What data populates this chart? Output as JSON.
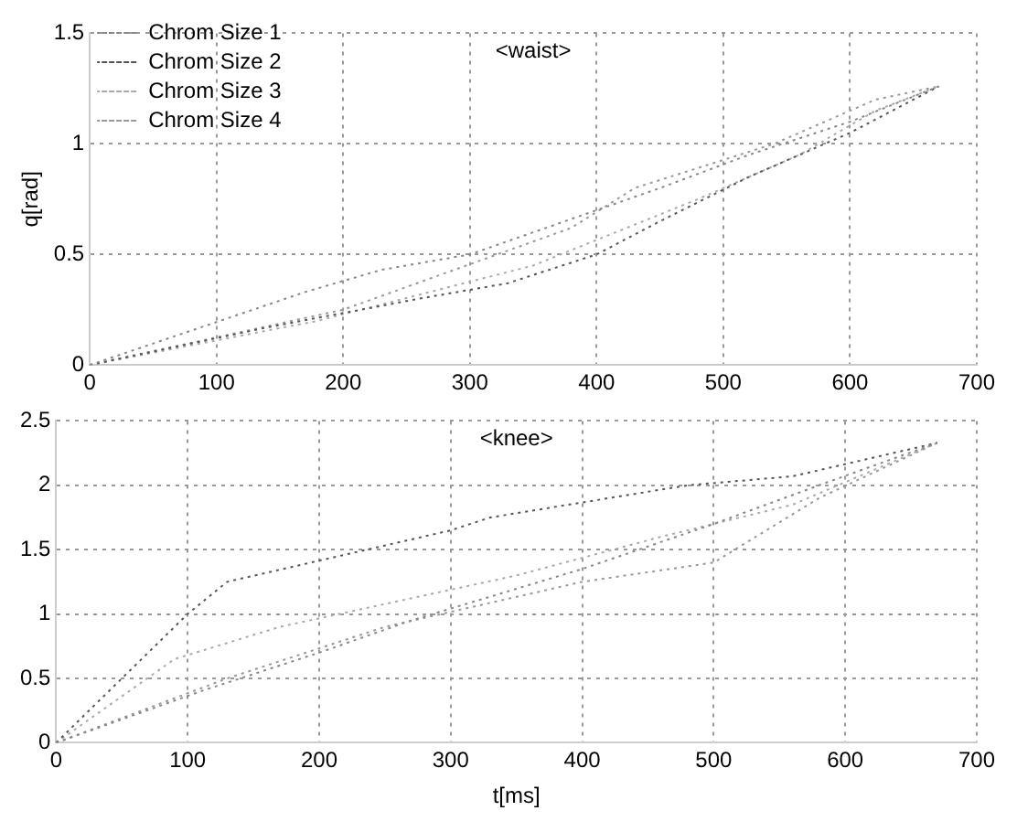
{
  "chart_data": [
    {
      "type": "line",
      "title": "<waist>",
      "ylabel": "q[rad]",
      "xlim": [
        0,
        700
      ],
      "xticks": [
        0,
        100,
        200,
        300,
        400,
        500,
        600,
        700
      ],
      "ylim": [
        0,
        1.5
      ],
      "yticks": [
        0,
        0.5,
        1,
        1.5
      ],
      "grid": true,
      "legend": "top left",
      "marker": "none",
      "line_style": "dotted",
      "series": [
        {
          "name": "Chrom Size 1",
          "color": "#888888",
          "x": [
            0,
            170,
            230,
            300,
            400,
            450,
            520,
            600,
            670
          ],
          "values": [
            0,
            0.33,
            0.43,
            0.5,
            0.7,
            0.8,
            0.95,
            1.1,
            1.26
          ]
        },
        {
          "name": "Chrom Size 2",
          "color": "#555555",
          "x": [
            0,
            140,
            260,
            330,
            400,
            450,
            520,
            600,
            670
          ],
          "values": [
            0,
            0.17,
            0.3,
            0.37,
            0.5,
            0.65,
            0.85,
            1.05,
            1.26
          ]
        },
        {
          "name": "Chrom Size 3",
          "color": "#aaaaaa",
          "x": [
            0,
            180,
            350,
            480,
            560,
            620,
            670
          ],
          "values": [
            0,
            0.2,
            0.45,
            0.75,
            0.95,
            1.15,
            1.26
          ]
        },
        {
          "name": "Chrom Size 4",
          "color": "#999999",
          "x": [
            0,
            200,
            380,
            430,
            540,
            620,
            670
          ],
          "values": [
            0,
            0.25,
            0.62,
            0.8,
            1.0,
            1.2,
            1.26
          ]
        }
      ]
    },
    {
      "type": "line",
      "title": "<knee>",
      "xlabel": "t[ms]",
      "xlim": [
        0,
        700
      ],
      "xticks": [
        0,
        100,
        200,
        300,
        400,
        500,
        600,
        700
      ],
      "ylim": [
        0,
        2.5
      ],
      "yticks": [
        0,
        0.5,
        1,
        1.5,
        2,
        2.5
      ],
      "grid": true,
      "marker": "none",
      "line_style": "dotted",
      "series": [
        {
          "color": "#888888",
          "x": [
            0,
            110,
            200,
            270,
            400,
            500,
            580,
            670
          ],
          "values": [
            0,
            0.4,
            0.7,
            0.95,
            1.35,
            1.7,
            2.0,
            2.33
          ]
        },
        {
          "color": "#555555",
          "x": [
            0,
            100,
            130,
            300,
            330,
            480,
            560,
            670
          ],
          "values": [
            0,
            1.0,
            1.25,
            1.65,
            1.75,
            2.0,
            2.07,
            2.33
          ]
        },
        {
          "color": "#aaaaaa",
          "x": [
            0,
            90,
            170,
            350,
            460,
            560,
            670
          ],
          "values": [
            0,
            0.65,
            0.9,
            1.3,
            1.6,
            1.85,
            2.33
          ]
        },
        {
          "color": "#999999",
          "x": [
            0,
            130,
            250,
            400,
            500,
            580,
            670
          ],
          "values": [
            0,
            0.5,
            0.9,
            1.25,
            1.4,
            1.9,
            2.33
          ]
        }
      ]
    }
  ]
}
